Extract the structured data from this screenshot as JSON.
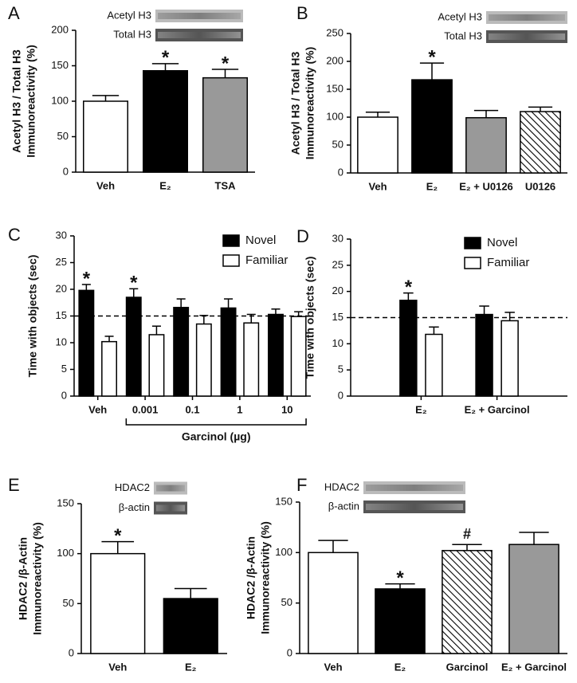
{
  "chart_data": [
    {
      "type": "bar",
      "panel": "A",
      "ylabel": [
        "Acetyl H3 / Total H3",
        "Immunoreactivity (%)"
      ],
      "blot_labels": [
        "Acetyl H3",
        "Total H3"
      ],
      "categories": [
        "Veh",
        "E₂",
        "TSA"
      ],
      "values": [
        100,
        143,
        133
      ],
      "errors": [
        8,
        10,
        12
      ],
      "colors": [
        "#ffffff",
        "#000000",
        "#999999"
      ],
      "ylim": [
        0,
        200
      ],
      "yticks": [
        0,
        50,
        100,
        150,
        200
      ],
      "annotations": [
        {
          "text": "*",
          "index": 1
        },
        {
          "text": "*",
          "index": 2
        }
      ]
    },
    {
      "type": "bar",
      "panel": "B",
      "ylabel": [
        "Acetyl H3 / Total H3",
        "Immunoreactivity (%)"
      ],
      "blot_labels": [
        "Acetyl H3",
        "Total H3"
      ],
      "categories": [
        "Veh",
        "E₂",
        "E₂ + U0126",
        "U0126"
      ],
      "values": [
        100,
        167,
        99,
        110
      ],
      "errors": [
        9,
        30,
        13,
        8
      ],
      "colors": [
        "#ffffff",
        "#000000",
        "#999999",
        "hatch"
      ],
      "ylim": [
        0,
        250
      ],
      "yticks": [
        0,
        50,
        100,
        150,
        200,
        250
      ],
      "annotations": [
        {
          "text": "*",
          "index": 1
        }
      ]
    },
    {
      "type": "grouped_bar",
      "panel": "C",
      "ylabel": [
        "Time with objects (sec)"
      ],
      "categories": [
        "Veh",
        "0.001",
        "0.1",
        "1",
        "10"
      ],
      "series": [
        {
          "name": "Novel",
          "color": "#000000",
          "values": [
            19.8,
            18.5,
            16.6,
            16.5,
            15.3
          ],
          "errors": [
            1.1,
            1.6,
            1.6,
            1.7,
            1.0
          ]
        },
        {
          "name": "Familiar",
          "color": "#ffffff",
          "values": [
            10.2,
            11.5,
            13.5,
            13.7,
            14.9
          ],
          "errors": [
            1.0,
            1.6,
            1.6,
            1.6,
            0.9
          ]
        }
      ],
      "ylim": [
        0,
        30
      ],
      "yticks": [
        0,
        5,
        10,
        15,
        20,
        25,
        30
      ],
      "reference_line": 15,
      "legend": "top-right",
      "group_label": {
        "text": "Garcinol (µg)",
        "from": 1,
        "to": 4
      },
      "annotations": [
        {
          "text": "*",
          "series_index": 0,
          "index": 0
        },
        {
          "text": "*",
          "series_index": 0,
          "index": 1
        }
      ]
    },
    {
      "type": "grouped_bar",
      "panel": "D",
      "ylabel": [
        "Time with objects (sec)"
      ],
      "categories": [
        "E₂",
        "E₂ + Garcinol"
      ],
      "series": [
        {
          "name": "Novel",
          "color": "#000000",
          "values": [
            18.3,
            15.6
          ],
          "errors": [
            1.4,
            1.6
          ]
        },
        {
          "name": "Familiar",
          "color": "#ffffff",
          "values": [
            11.8,
            14.4
          ],
          "errors": [
            1.4,
            1.6
          ]
        }
      ],
      "ylim": [
        0,
        30
      ],
      "yticks": [
        0,
        5,
        10,
        15,
        20,
        25,
        30
      ],
      "reference_line": 15,
      "legend": "top-right",
      "annotations": [
        {
          "text": "*",
          "series_index": 0,
          "index": 0
        }
      ]
    },
    {
      "type": "bar",
      "panel": "E",
      "ylabel": [
        "HDAC2 /β-Actin",
        "Immunoreactivity (%)"
      ],
      "blot_labels": [
        "HDAC2",
        "β-actin"
      ],
      "categories": [
        "Veh",
        "E₂"
      ],
      "values": [
        100,
        55
      ],
      "errors": [
        12,
        10
      ],
      "colors": [
        "#ffffff",
        "#000000"
      ],
      "ylim": [
        0,
        150
      ],
      "yticks": [
        0,
        50,
        100,
        150
      ],
      "annotations": [
        {
          "text": "*",
          "index": 0
        }
      ]
    },
    {
      "type": "bar",
      "panel": "F",
      "ylabel": [
        "HDAC2 /β-Actin",
        "Immunoreactivity (%)"
      ],
      "blot_labels": [
        "HDAC2",
        "β-actin"
      ],
      "categories": [
        "Veh",
        "E₂",
        "Garcinol",
        "E₂ + Garcinol"
      ],
      "values": [
        100,
        64,
        102,
        108
      ],
      "errors": [
        12,
        5,
        6,
        12
      ],
      "colors": [
        "#ffffff",
        "#000000",
        "hatch",
        "#999999"
      ],
      "ylim": [
        0,
        150
      ],
      "yticks": [
        0,
        50,
        100,
        150
      ],
      "annotations": [
        {
          "text": "*",
          "index": 1
        },
        {
          "text": "#",
          "index": 2
        }
      ]
    }
  ]
}
